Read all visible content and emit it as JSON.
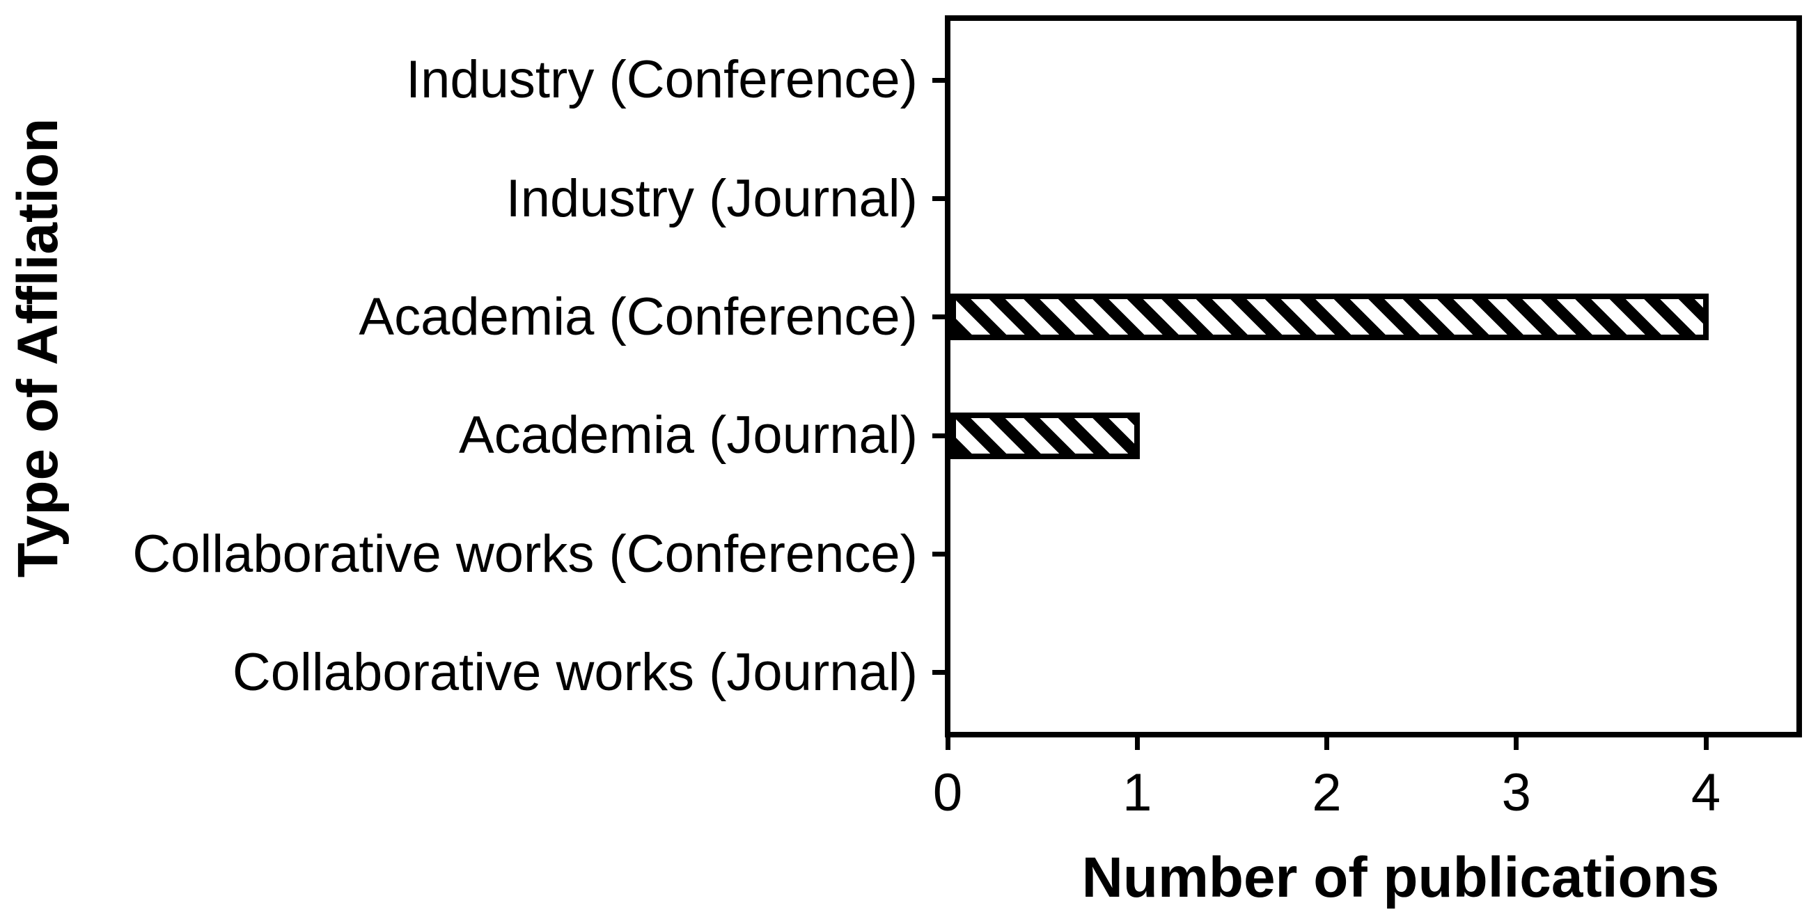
{
  "page": {
    "background": "#ffffff",
    "foreground": "#000000"
  },
  "chart_data": {
    "type": "bar",
    "orientation": "horizontal",
    "categories": [
      "Industry (Conference)",
      "Industry (Journal)",
      "Academia (Conference)",
      "Academia (Journal)",
      "Collaborative works (Conference)",
      "Collaborative works (Journal)"
    ],
    "values": [
      0,
      0,
      4,
      1,
      0,
      0
    ],
    "xlabel": "Number of publications",
    "ylabel": "Type of Affliation",
    "xticks": [
      "0",
      "1",
      "2",
      "3",
      "4"
    ],
    "xlim": [
      0,
      4.5
    ],
    "grid": "off",
    "legend": "none",
    "bar_style": {
      "fill": "diagonal-hatch-backslash",
      "hatch_color": "#000000",
      "bar_background": "#ffffff",
      "outline_color": "#000000"
    }
  }
}
